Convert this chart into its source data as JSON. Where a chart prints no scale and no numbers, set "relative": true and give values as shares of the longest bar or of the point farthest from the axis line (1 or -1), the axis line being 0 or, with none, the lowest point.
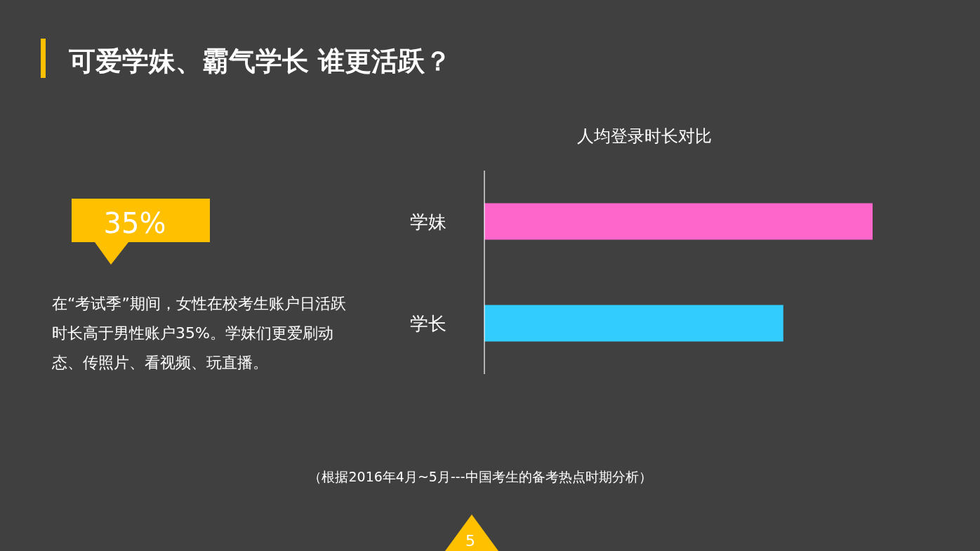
{
  "chart_data": {
    "type": "bar",
    "orientation": "horizontal",
    "relative": true,
    "title": "可爱学妹、霸气学长 谁更活跃？",
    "subtitle": "人均登录时长对比",
    "categories": [
      "学妹",
      "学长"
    ],
    "values": [
      1,
      0.77
    ],
    "colors": [
      "#ff66cc",
      "#33ccff"
    ],
    "annotations": [
      "35%",
      "在“考试季”期间，女性在校考生账户日活跃时长高于男性账户35%。学妹们更爱刷动态、传照片、看视频、玩直播。",
      "（根据2016年4月~5月---中国考生的备考热点时期分析）",
      "5"
    ]
  }
}
